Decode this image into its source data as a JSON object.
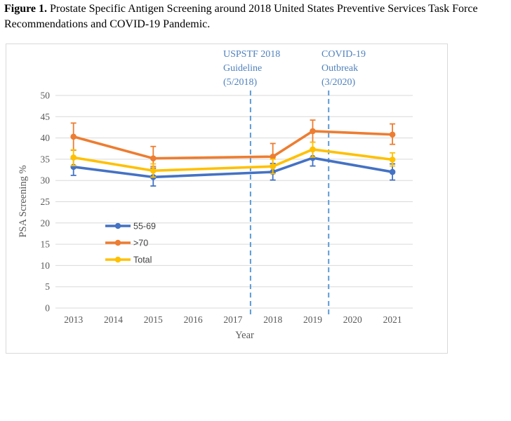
{
  "caption": {
    "label": "Figure 1.",
    "text": " Prostate Specific Antigen Screening around 2018 United States Preventive Services Task Force Recommendations and COVID-19 Pandemic."
  },
  "chart_data": {
    "type": "line",
    "title": "",
    "xlabel": "Year",
    "ylabel": "PSA Screening %",
    "x_categories": [
      "2013",
      "2014",
      "2015",
      "2016",
      "2017",
      "2018",
      "2019",
      "2020",
      "2021"
    ],
    "data_years": [
      2013,
      2015,
      2018,
      2019,
      2021
    ],
    "ylim": [
      0,
      50
    ],
    "yticks": [
      0,
      5,
      10,
      15,
      20,
      25,
      30,
      35,
      40,
      45,
      50
    ],
    "grid": true,
    "legend_position": "inside-left-middle",
    "series": [
      {
        "name": "55-69",
        "color": "#4472C4",
        "values": [
          33.2,
          30.8,
          32.0,
          35.3,
          32.0
        ],
        "err_low": [
          31.2,
          28.7,
          30.1,
          33.4,
          30.1
        ],
        "err_high": [
          35.1,
          32.9,
          34.0,
          37.2,
          33.9
        ]
      },
      {
        "name": ">70",
        "color": "#ED7D31",
        "values": [
          40.3,
          35.2,
          35.6,
          41.6,
          40.8
        ],
        "err_low": [
          37.1,
          33.3,
          33.6,
          39.0,
          38.5
        ],
        "err_high": [
          43.5,
          38.0,
          38.7,
          44.2,
          43.3
        ]
      },
      {
        "name": "Total",
        "color": "#FFC000",
        "values": [
          35.4,
          32.3,
          33.3,
          37.3,
          34.9
        ],
        "err_low": [
          33.5,
          30.8,
          31.6,
          35.5,
          33.4
        ],
        "err_high": [
          37.2,
          33.9,
          35.0,
          39.0,
          36.5
        ]
      }
    ],
    "event_lines": [
      {
        "label_lines": [
          "USPSTF 2018",
          "Guideline",
          "(5/2018)"
        ],
        "x_year": 2017.44,
        "line_color": "#5B9BD5",
        "text_color": "#4F81BD"
      },
      {
        "label_lines": [
          "COVID-19",
          "Outbreak",
          "(3/2020)"
        ],
        "x_year": 2019.4,
        "line_color": "#5B9BD5",
        "text_color": "#4F81BD"
      }
    ],
    "colors": {
      "gridline": "#D9D9D9",
      "tick_text": "#595959",
      "axis_title_text": "#595959",
      "legend_text": "#3F3F3F"
    }
  }
}
